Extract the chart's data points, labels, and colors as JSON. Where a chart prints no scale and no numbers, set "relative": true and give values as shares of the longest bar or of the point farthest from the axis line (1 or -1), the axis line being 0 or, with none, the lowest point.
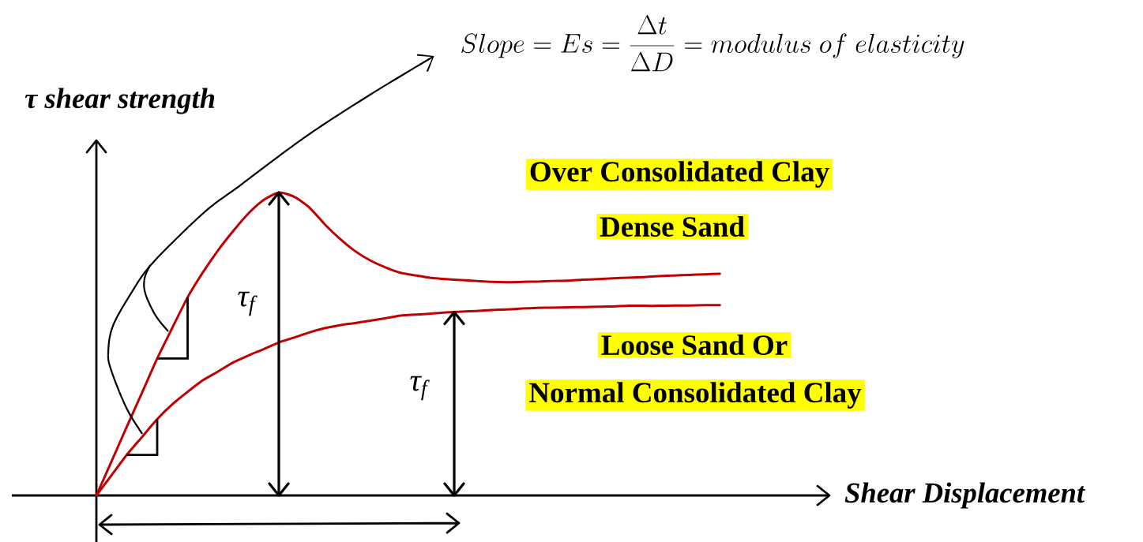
{
  "chart_data": {
    "type": "line",
    "relative": true,
    "xlabel": "Shear Displacement",
    "ylabel": "τ shear strength",
    "categories": [
      null,
      null,
      null,
      null,
      null,
      null,
      null,
      null,
      null,
      null,
      null,
      null,
      null,
      null,
      null,
      null,
      null,
      null,
      null,
      null,
      null,
      null,
      null,
      null,
      null,
      null,
      null,
      null,
      null,
      null,
      null,
      null,
      null,
      null,
      null,
      null,
      null,
      null,
      null,
      null,
      null,
      null
    ],
    "series": [
      {
        "color": "#c00000",
        "values": [
          0,
          0.113,
          0.227,
          0.339,
          0.452,
          0.554,
          0.654,
          0.736,
          0.809,
          0.873,
          0.931,
          0.975,
          1,
          0.986,
          0.951,
          0.896,
          0.848,
          0.807,
          0.776,
          0.753,
          0.735,
          0.726,
          0.718,
          0.714,
          0.711,
          0.708,
          0.705,
          0.704,
          0.705,
          0.706,
          0.708,
          0.709,
          0.712,
          0.714,
          0.717,
          0.719,
          0.721,
          0.724,
          0.726,
          0.728,
          0.73,
          0.732
        ]
      },
      {
        "color": "#c00000",
        "values": [
          0,
          0.067,
          0.134,
          0.193,
          0.252,
          0.301,
          0.342,
          0.38,
          0.409,
          0.439,
          0.462,
          0.483,
          0.505,
          0.521,
          0.538,
          0.552,
          0.562,
          0.569,
          0.577,
          0.585,
          0.594,
          0.597,
          0.6,
          0.604,
          0.607,
          0.609,
          0.612,
          0.614,
          0.617,
          0.619,
          0.62,
          0.621,
          0.622,
          0.623,
          0.624,
          0.626,
          0.626,
          0.626,
          0.627,
          0.627,
          0.628,
          0.628
        ]
      }
    ],
    "annotations": [
      "Over Consolidated Clay",
      "Dense Sand",
      "Loose Sand Or",
      "Normal Consolidated Clay",
      "τ$_{f}$",
      "τ$_{f}$",
      "Slope = Es = \\frac{\\Delta t}{\\Delta D} = modulus\\ of\\ elasticity"
    ]
  }
}
